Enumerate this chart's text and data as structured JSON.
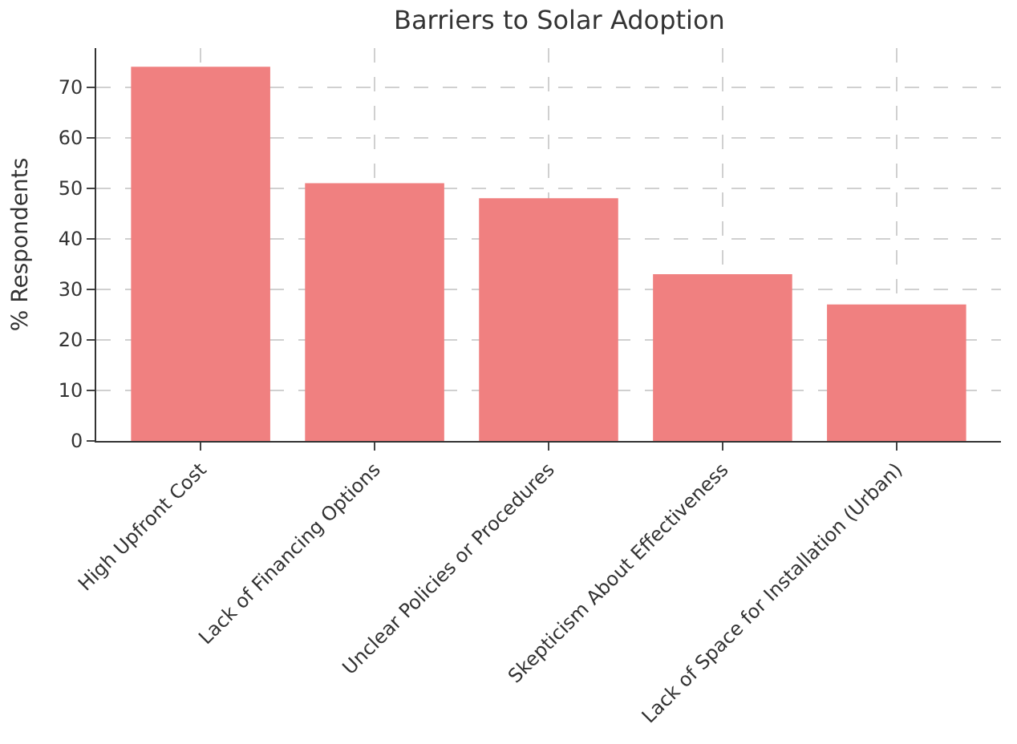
{
  "chart_data": {
    "type": "bar",
    "title": "Barriers to Solar Adoption",
    "ylabel": "% Respondents",
    "categories": [
      "High Upfront Cost",
      "Lack of Financing Options",
      "Unclear Policies or Procedures",
      "Skepticism About Effectiveness",
      "Lack of Space for Installation (Urban)"
    ],
    "values": [
      74,
      51,
      48,
      33,
      27
    ],
    "color": "#f08080",
    "ylim": [
      0,
      77.7
    ],
    "yticks": [
      0,
      10,
      20,
      30,
      40,
      50,
      60,
      70
    ],
    "grid": true,
    "legend": false
  }
}
